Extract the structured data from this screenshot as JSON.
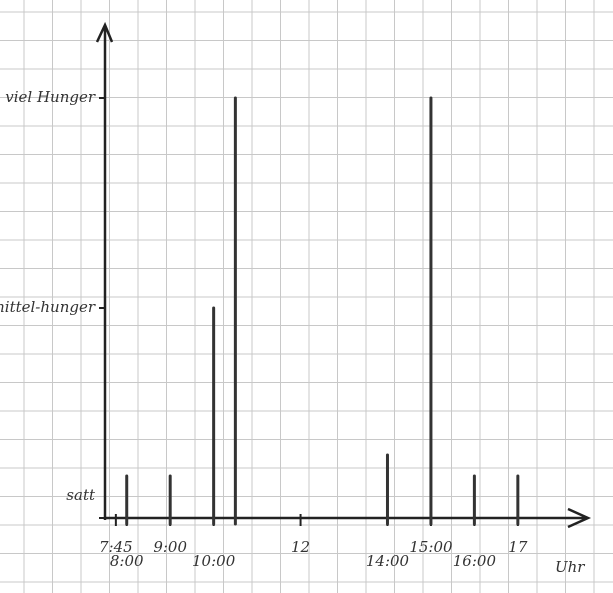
{
  "chart_data": {
    "type": "spike",
    "x": [
      8,
      9,
      10,
      10.5,
      14,
      15,
      16,
      17
    ],
    "values": [
      0.2,
      0.2,
      1,
      2,
      0.3,
      2,
      0.2,
      0.2
    ],
    "xlim": [
      7.5,
      18.2
    ],
    "xticks": [
      {
        "value": 7.75,
        "label": "7:45"
      },
      {
        "value": 8,
        "label": "8:00"
      },
      {
        "value": 9,
        "label": "9:00"
      },
      {
        "value": 10,
        "label": "10:00"
      },
      12,
      {
        "value": 14,
        "label": "14:00"
      },
      {
        "value": 15,
        "label": "15:00"
      },
      {
        "value": 16,
        "label": "16:00"
      },
      17
    ],
    "xlabel": "Uhr",
    "ylim": [
      0,
      2.2
    ],
    "yticks": [
      {
        "value": 0,
        "label": "satt"
      },
      {
        "value": 1,
        "label": "mittel-hunger"
      },
      {
        "value": 2,
        "label": "viel Hunger"
      }
    ],
    "color": "#333333"
  }
}
